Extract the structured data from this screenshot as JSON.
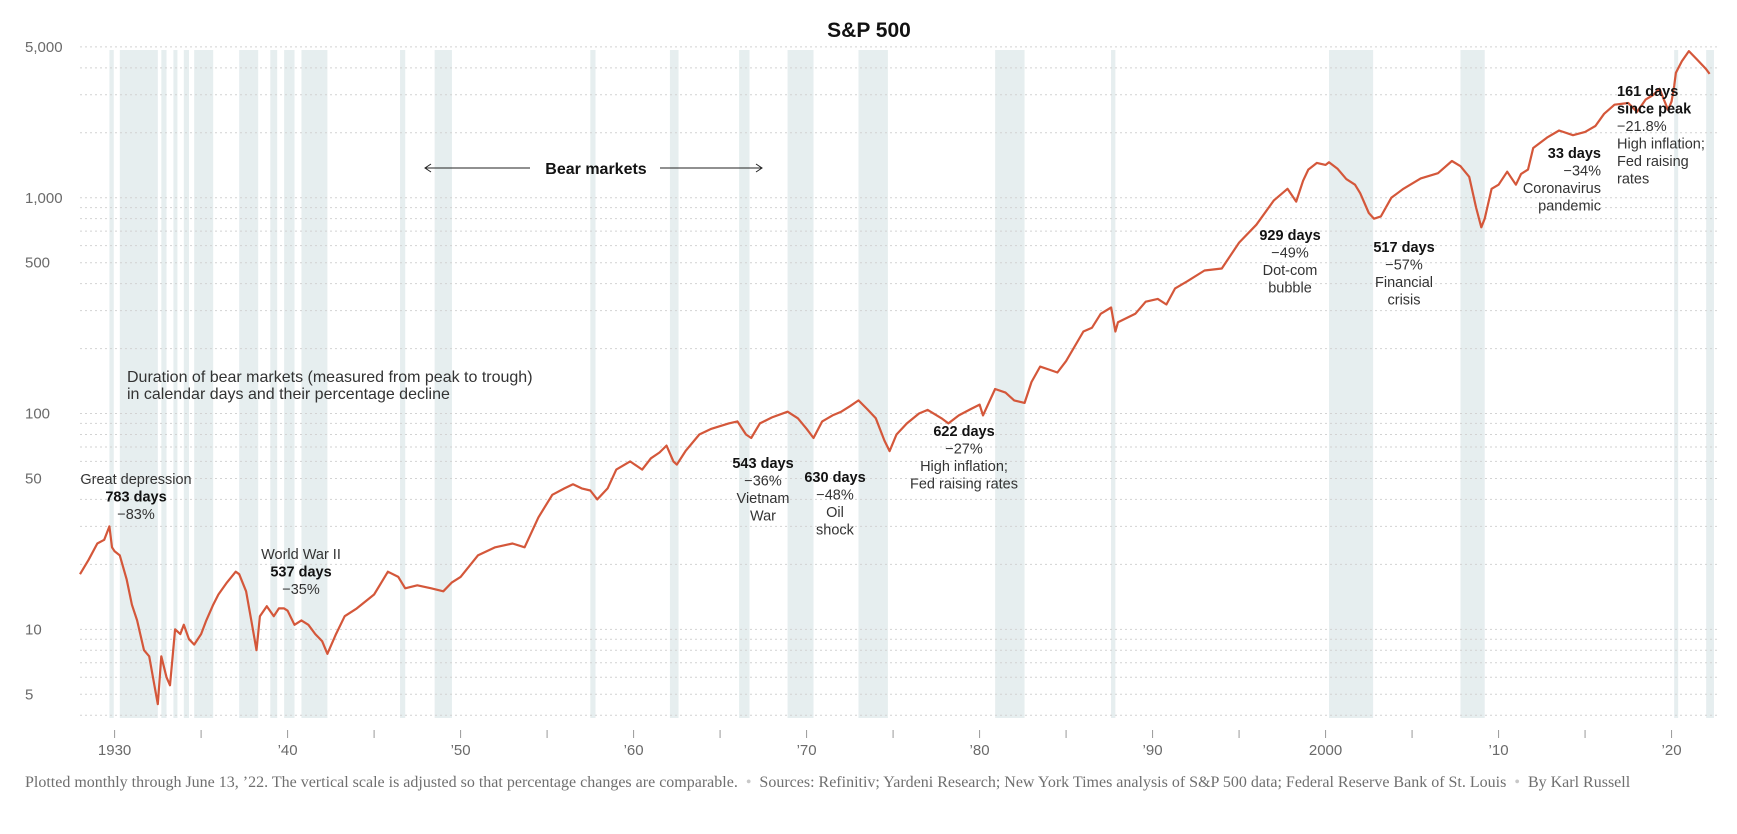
{
  "chart_data": {
    "type": "line",
    "title": "S&P 500",
    "y_scale": "log",
    "ylim": [
      3.8,
      5500
    ],
    "xlim": [
      1928.0,
      2022.8
    ],
    "y_ticks": [
      {
        "value": 5000,
        "label": "5,000"
      },
      {
        "value": 1000,
        "label": "1,000"
      },
      {
        "value": 500,
        "label": "500"
      },
      {
        "value": 100,
        "label": "100"
      },
      {
        "value": 50,
        "label": "50"
      },
      {
        "value": 10,
        "label": "10"
      },
      {
        "value": 5,
        "label": "5"
      }
    ],
    "x_ticks": [
      {
        "value": 1930,
        "label": "1930"
      },
      {
        "value": 1940,
        "label": "’40"
      },
      {
        "value": 1950,
        "label": "’50"
      },
      {
        "value": 1960,
        "label": "’60"
      },
      {
        "value": 1970,
        "label": "’70"
      },
      {
        "value": 1980,
        "label": "’80"
      },
      {
        "value": 1990,
        "label": "’90"
      },
      {
        "value": 2000,
        "label": "2000"
      },
      {
        "value": 2010,
        "label": "’10"
      },
      {
        "value": 2020,
        "label": "’20"
      }
    ],
    "line_color": "#d4573a",
    "band_color": "#e6eeef",
    "series": [
      {
        "x": [
          1928.0,
          1928.5,
          1929.0,
          1929.4,
          1929.7,
          1929.85,
          1930.0,
          1930.3,
          1930.7,
          1931.0,
          1931.3,
          1931.7,
          1932.0,
          1932.3,
          1932.5,
          1932.7,
          1933.0,
          1933.2,
          1933.5,
          1933.8,
          1934.0,
          1934.3,
          1934.6,
          1935.0,
          1935.3,
          1935.7,
          1936.0,
          1936.5,
          1937.0,
          1937.2,
          1937.6,
          1937.9,
          1938.2,
          1938.4,
          1938.8,
          1939.2,
          1939.5,
          1939.8,
          1940.0,
          1940.4,
          1940.8,
          1941.2,
          1941.6,
          1942.0,
          1942.3,
          1942.8,
          1943.3,
          1944.0,
          1945.0,
          1945.8,
          1946.4,
          1946.8,
          1947.5,
          1948.3,
          1949.0,
          1949.5,
          1950.0,
          1951.0,
          1952.0,
          1953.0,
          1953.7,
          1954.5,
          1955.3,
          1956.0,
          1956.5,
          1957.0,
          1957.5,
          1957.9,
          1958.5,
          1959.0,
          1959.8,
          1960.5,
          1961.0,
          1961.5,
          1961.9,
          1962.3,
          1962.5,
          1963.0,
          1963.8,
          1964.5,
          1965.5,
          1966.0,
          1966.5,
          1966.8,
          1967.3,
          1968.0,
          1968.9,
          1969.5,
          1970.0,
          1970.4,
          1970.9,
          1971.5,
          1972.0,
          1972.5,
          1973.0,
          1973.5,
          1974.0,
          1974.5,
          1974.8,
          1975.2,
          1975.8,
          1976.5,
          1977.0,
          1977.8,
          1978.2,
          1978.8,
          1979.5,
          1980.0,
          1980.2,
          1980.9,
          1981.5,
          1982.0,
          1982.6,
          1983.0,
          1983.5,
          1984.0,
          1984.5,
          1985.0,
          1986.0,
          1986.5,
          1987.0,
          1987.6,
          1987.85,
          1988.0,
          1989.0,
          1989.6,
          1990.3,
          1990.8,
          1991.3,
          1992.0,
          1993.0,
          1994.0,
          1995.0,
          1996.0,
          1997.0,
          1997.8,
          1998.3,
          1998.7,
          1999.0,
          1999.5,
          2000.0,
          2000.2,
          2000.7,
          2001.2,
          2001.7,
          2002.0,
          2002.5,
          2002.8,
          2003.2,
          2003.8,
          2004.5,
          2005.5,
          2006.5,
          2007.3,
          2007.8,
          2008.3,
          2008.7,
          2009.0,
          2009.2,
          2009.6,
          2010.0,
          2010.5,
          2011.0,
          2011.3,
          2011.7,
          2012.0,
          2012.8,
          2013.5,
          2014.3,
          2015.0,
          2015.6,
          2016.1,
          2016.7,
          2017.5,
          2018.0,
          2018.5,
          2018.95,
          2019.3,
          2019.8,
          2020.0,
          2020.15,
          2020.25,
          2020.6,
          2021.0,
          2021.5,
          2021.99,
          2022.2,
          2022.4,
          2022.45
        ]
      },
      {
        "y": [
          18,
          21,
          25,
          26,
          30,
          24,
          23,
          22,
          17,
          13,
          11,
          8,
          7.5,
          5.5,
          4.5,
          7.5,
          6.0,
          5.5,
          10,
          9.5,
          10.5,
          9.0,
          8.5,
          9.5,
          11,
          13,
          14.5,
          16.5,
          18.5,
          18,
          15,
          11,
          8,
          11.5,
          12.8,
          11.5,
          12.5,
          12.5,
          12.2,
          10.5,
          11,
          10.5,
          9.5,
          8.8,
          7.7,
          9.5,
          11.5,
          12.5,
          14.5,
          18.5,
          17.5,
          15.5,
          16,
          15.5,
          15,
          16.5,
          17.5,
          22,
          24,
          25,
          24,
          33,
          42,
          45,
          47,
          45,
          44,
          40,
          45,
          55,
          60,
          55,
          62,
          66,
          71,
          60,
          58,
          67,
          80,
          85,
          90,
          92,
          80,
          77,
          90,
          96,
          102,
          95,
          85,
          77,
          92,
          98,
          102,
          108,
          115,
          105,
          95,
          75,
          67,
          80,
          90,
          100,
          104,
          95,
          90,
          98,
          105,
          110,
          98,
          130,
          125,
          115,
          112,
          140,
          165,
          160,
          155,
          175,
          240,
          250,
          290,
          310,
          240,
          265,
          290,
          330,
          340,
          320,
          380,
          410,
          460,
          470,
          620,
          750,
          970,
          1100,
          960,
          1200,
          1350,
          1450,
          1420,
          1460,
          1360,
          1220,
          1150,
          1050,
          850,
          800,
          820,
          1000,
          1100,
          1230,
          1300,
          1480,
          1400,
          1250,
          900,
          730,
          800,
          1100,
          1150,
          1320,
          1150,
          1290,
          1350,
          1700,
          1900,
          2050,
          1950,
          2020,
          2150,
          2450,
          2700,
          2750,
          2500,
          2850,
          3000,
          3200,
          2550,
          2800,
          3300,
          3800,
          4300,
          4780,
          4350,
          3950,
          3750
        ]
      }
    ],
    "bear_markets_label": "Bear markets",
    "bear_bands": [
      [
        1929.7,
        1929.95
      ],
      [
        1930.3,
        1932.5
      ],
      [
        1932.7,
        1933.0
      ],
      [
        1933.4,
        1933.6
      ],
      [
        1934.0,
        1934.3
      ],
      [
        1934.6,
        1935.7
      ],
      [
        1937.2,
        1938.3
      ],
      [
        1939.0,
        1939.4
      ],
      [
        1939.8,
        1940.4
      ],
      [
        1940.8,
        1942.3
      ],
      [
        1946.5,
        1946.8
      ],
      [
        1948.5,
        1949.5
      ],
      [
        1957.5,
        1957.8
      ],
      [
        1962.1,
        1962.6
      ],
      [
        1966.1,
        1966.7
      ],
      [
        1968.9,
        1970.4
      ],
      [
        1973.0,
        1974.7
      ],
      [
        1980.9,
        1982.6
      ],
      [
        1987.6,
        1987.85
      ],
      [
        2000.2,
        2002.75
      ],
      [
        2007.8,
        2009.2
      ],
      [
        2020.15,
        2020.25
      ],
      [
        2022.0,
        2022.45
      ]
    ],
    "duration_note": [
      "Duration of bear markets (measured from peak to trough)",
      "in calendar days and their percentage decline"
    ],
    "annotations": [
      {
        "lines": [
          {
            "t": "Great depression",
            "b": false
          },
          {
            "t": "783 days",
            "b": true
          },
          {
            "t": "−83%",
            "b": false
          }
        ]
      },
      {
        "lines": [
          {
            "t": "World War II",
            "b": false
          },
          {
            "t": "537 days",
            "b": true
          },
          {
            "t": "−35%",
            "b": false
          }
        ]
      },
      {
        "lines": [
          {
            "t": "543 days",
            "b": true
          },
          {
            "t": "−36%",
            "b": false
          },
          {
            "t": "Vietnam",
            "b": false
          },
          {
            "t": "War",
            "b": false
          }
        ]
      },
      {
        "lines": [
          {
            "t": "630 days",
            "b": true
          },
          {
            "t": "−48%",
            "b": false
          },
          {
            "t": "Oil",
            "b": false
          },
          {
            "t": "shock",
            "b": false
          }
        ]
      },
      {
        "lines": [
          {
            "t": "622 days",
            "b": true
          },
          {
            "t": "−27%",
            "b": false
          },
          {
            "t": "High inflation;",
            "b": false
          },
          {
            "t": "Fed raising rates",
            "b": false
          }
        ]
      },
      {
        "lines": [
          {
            "t": "929 days",
            "b": true
          },
          {
            "t": "−49%",
            "b": false
          },
          {
            "t": "Dot-com",
            "b": false
          },
          {
            "t": "bubble",
            "b": false
          }
        ]
      },
      {
        "lines": [
          {
            "t": "517 days",
            "b": true
          },
          {
            "t": "−57%",
            "b": false
          },
          {
            "t": "Financial",
            "b": false
          },
          {
            "t": "crisis",
            "b": false
          }
        ]
      },
      {
        "lines": [
          {
            "t": "33 days",
            "b": true
          },
          {
            "t": "−34%",
            "b": false
          },
          {
            "t": "Coronavirus",
            "b": false
          },
          {
            "t": "pandemic",
            "b": false
          }
        ]
      },
      {
        "lines": [
          {
            "t": "161 days",
            "b": true
          },
          {
            "t": "since peak",
            "b": true
          },
          {
            "t": "−21.8%",
            "b": false
          },
          {
            "t": "High inflation;",
            "b": false
          },
          {
            "t": "Fed raising",
            "b": false
          },
          {
            "t": "rates",
            "b": false
          }
        ]
      }
    ]
  },
  "footer": {
    "note": "Plotted monthly through June 13, ’22. The vertical scale is adjusted so that percentage changes are comparable.",
    "sources": "Sources: Refinitiv; Yardeni Research; New York Times analysis of S&P 500 data; Federal Reserve Bank of St. Louis",
    "byline": "By Karl Russell",
    "separator": "•"
  }
}
